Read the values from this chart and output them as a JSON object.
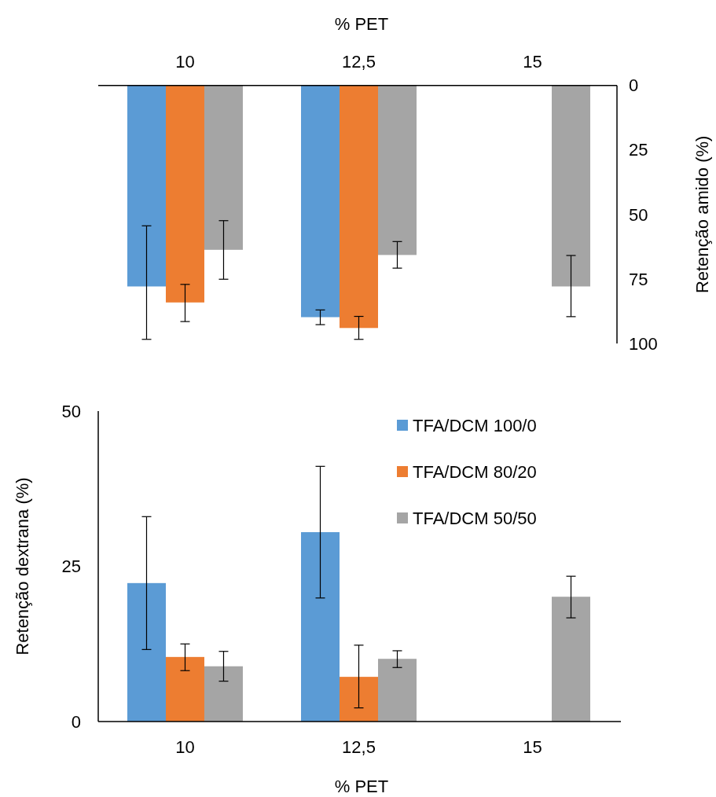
{
  "chart_data": [
    {
      "type": "bar",
      "x2label": "% PET",
      "y2label": "Retenção amido (%)",
      "categories": [
        "10",
        "12,5",
        "15"
      ],
      "y2lim": [
        100,
        0
      ],
      "y2ticks": [
        0,
        25,
        50,
        75,
        100
      ],
      "grid": false,
      "legend": false,
      "series": [
        {
          "axis": "y2",
          "color": "#5b9bd5",
          "values": [
            77.9,
            89.8,
            null
          ],
          "errors": [
            [
              54.4,
              98.4
            ],
            [
              87.0,
              92.7
            ],
            null
          ]
        },
        {
          "axis": "y2",
          "color": "#ed7d31",
          "values": [
            84.1,
            94.0,
            null
          ],
          "errors": [
            [
              77.1,
              91.5
            ],
            [
              89.5,
              98.4
            ],
            null
          ]
        },
        {
          "axis": "y2",
          "color": "#a5a5a5",
          "values": [
            63.7,
            65.7,
            77.9
          ],
          "errors": [
            [
              52.4,
              75.1
            ],
            [
              60.5,
              70.8
            ],
            [
              65.9,
              89.6
            ]
          ]
        }
      ]
    },
    {
      "type": "bar",
      "xlabel": "% PET",
      "ylabel": "Retenção dextrana (%)",
      "categories": [
        "10",
        "12,5",
        "15"
      ],
      "ylim": [
        0,
        50
      ],
      "yticks": [
        0,
        25,
        50
      ],
      "grid": false,
      "legend": "top right",
      "series": [
        {
          "name": "TFA/DCM 100/0",
          "color": "#5b9bd5",
          "values": [
            22.3,
            30.5,
            null
          ],
          "errors": [
            [
              11.6,
              33.0
            ],
            [
              19.9,
              41.1
            ],
            null
          ]
        },
        {
          "name": "TFA/DCM 80/20",
          "color": "#ed7d31",
          "values": [
            10.4,
            7.2,
            null
          ],
          "errors": [
            [
              8.2,
              12.5
            ],
            [
              2.2,
              12.3
            ],
            null
          ]
        },
        {
          "name": "TFA/DCM 50/50",
          "color": "#a5a5a5",
          "values": [
            8.9,
            10.1,
            20.1
          ],
          "errors": [
            [
              6.5,
              11.3
            ],
            [
              8.7,
              11.4
            ],
            [
              16.7,
              23.4
            ]
          ]
        }
      ]
    }
  ]
}
